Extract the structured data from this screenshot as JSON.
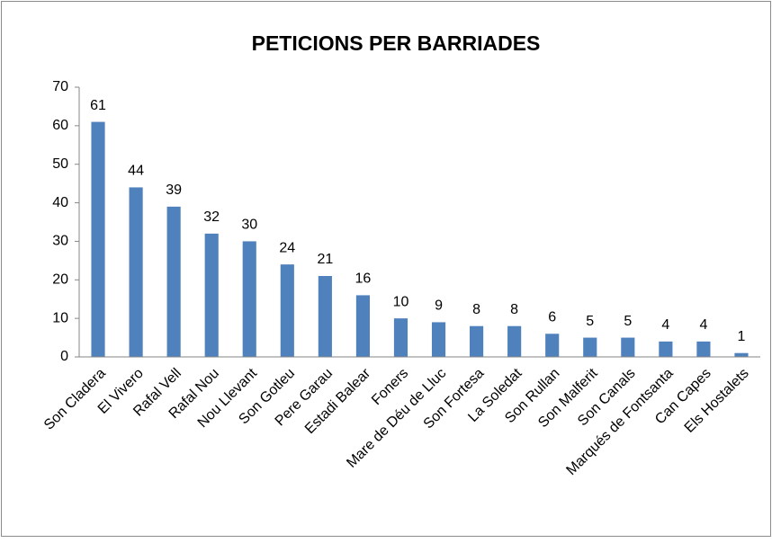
{
  "chart_data": {
    "type": "bar",
    "title": "PETICIONS PER BARRIADES",
    "categories": [
      "Son Cladera",
      "El Vivero",
      "Rafal Vell",
      "Rafal Nou",
      "Nou Llevant",
      "Son Gotleu",
      "Pere Garau",
      "Estadi Balear",
      "Foners",
      "Mare de Déu de Lluc",
      "Son Fortesa",
      "La Soledat",
      "Son Rullan",
      "Son Malferit",
      "Son Canals",
      "Marqués de Fontsanta",
      "Can Capes",
      "Els Hostalets"
    ],
    "values": [
      61,
      44,
      39,
      32,
      30,
      24,
      21,
      16,
      10,
      9,
      8,
      8,
      6,
      5,
      5,
      4,
      4,
      1
    ],
    "color": "#4f81bd",
    "ylim": [
      0,
      70
    ],
    "yticks": [
      0,
      10,
      20,
      30,
      40,
      50,
      60,
      70
    ],
    "grid": false
  }
}
